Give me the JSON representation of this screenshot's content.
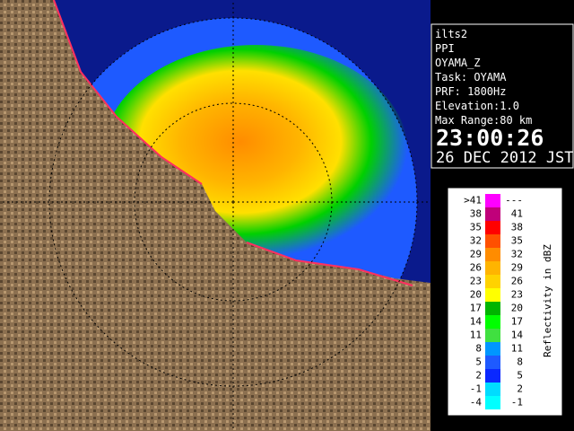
{
  "info": {
    "lines": [
      "ilts2",
      "PPI",
      "OYAMA_Z",
      "Task: OYAMA",
      "PRF: 1800Hz",
      "Elevation:1.0",
      "Max Range:80 km"
    ],
    "time": "23:00:26",
    "date": "26 DEC 2012 JST"
  },
  "legend": {
    "title": "Reflectivity in dBZ",
    "rows": [
      {
        "color": "#ff00ff",
        "low": ">41",
        "high": "---"
      },
      {
        "color": "#c0007a",
        "low": "38",
        "high": "41"
      },
      {
        "color": "#ff0000",
        "low": "35",
        "high": "38"
      },
      {
        "color": "#ff5000",
        "low": "32",
        "high": "35"
      },
      {
        "color": "#ff8c00",
        "low": "29",
        "high": "32"
      },
      {
        "color": "#ffb400",
        "low": "26",
        "high": "29"
      },
      {
        "color": "#ffd200",
        "low": "23",
        "high": "26"
      },
      {
        "color": "#ffff00",
        "low": "20",
        "high": "23"
      },
      {
        "color": "#00b400",
        "low": "17",
        "high": "20"
      },
      {
        "color": "#00ff00",
        "low": "14",
        "high": "17"
      },
      {
        "color": "#40e040",
        "low": "11",
        "high": "14"
      },
      {
        "color": "#0096ff",
        "low": "8",
        "high": "11"
      },
      {
        "color": "#1e5aff",
        "low": "5",
        "high": "8"
      },
      {
        "color": "#0a28ff",
        "low": "2",
        "high": "5"
      },
      {
        "color": "#00dcff",
        "low": "-1",
        "high": "2"
      },
      {
        "color": "#00ffff",
        "low": "-4",
        "high": "-1"
      }
    ]
  }
}
